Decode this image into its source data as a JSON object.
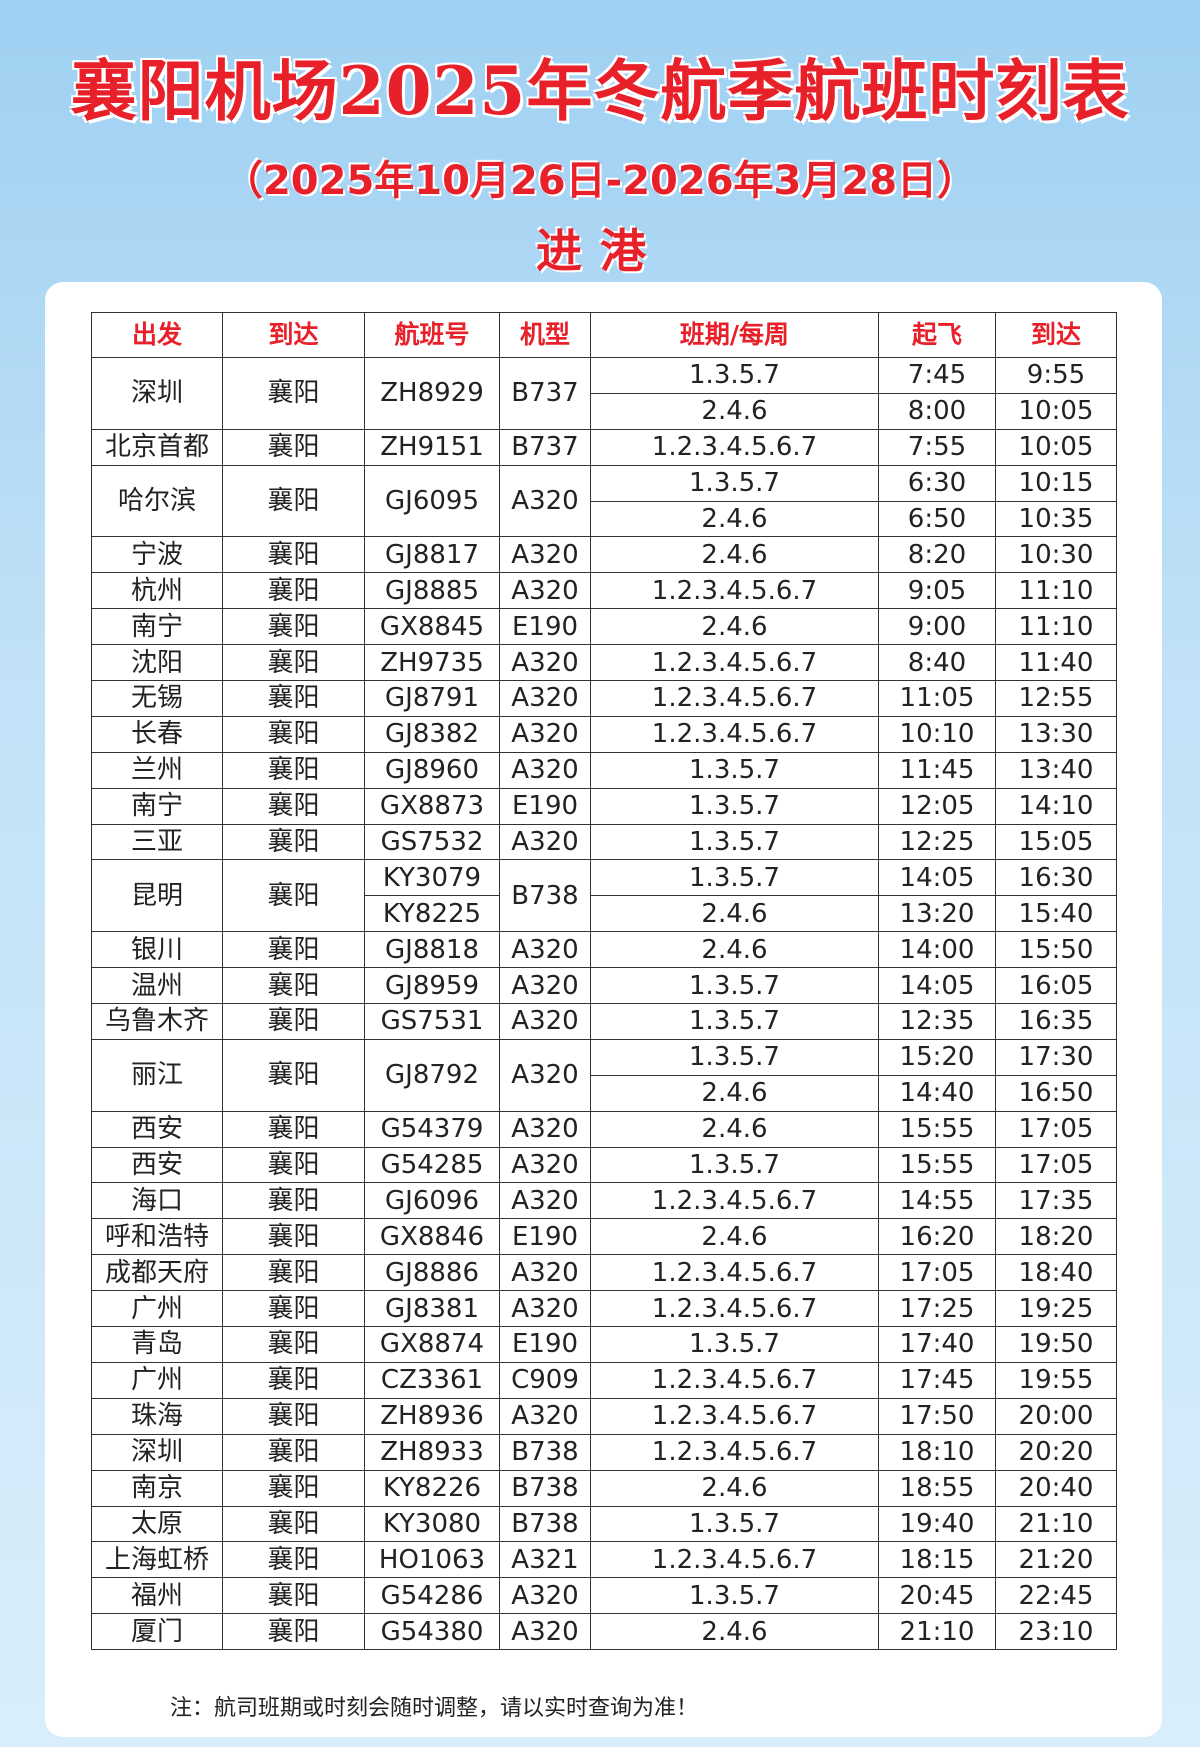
{
  "title": "襄阳机场2025年冬航季航班时刻表",
  "subtitle": "（2025年10月26日-2026年3月28日）",
  "section": "进港",
  "colors": {
    "accent": "#e8202a",
    "background": "#b5dcf5"
  },
  "table": {
    "headers": [
      "出发",
      "到达",
      "航班号",
      "机型",
      "班期/每周",
      "起飞",
      "到达"
    ],
    "rows": [
      {
        "from": "深圳",
        "to": "襄阳",
        "flight": "ZH8929",
        "aircraft": "B737",
        "schedules": [
          {
            "days": "1.3.5.7",
            "dep": "7:45",
            "arr": "9:55"
          },
          {
            "days": "2.4.6",
            "dep": "8:00",
            "arr": "10:05"
          }
        ]
      },
      {
        "from": "北京首都",
        "to": "襄阳",
        "flight": "ZH9151",
        "aircraft": "B737",
        "schedules": [
          {
            "days": "1.2.3.4.5.6.7",
            "dep": "7:55",
            "arr": "10:05"
          }
        ]
      },
      {
        "from": "哈尔滨",
        "to": "襄阳",
        "flight": "GJ6095",
        "aircraft": "A320",
        "schedules": [
          {
            "days": "1.3.5.7",
            "dep": "6:30",
            "arr": "10:15"
          },
          {
            "days": "2.4.6",
            "dep": "6:50",
            "arr": "10:35"
          }
        ]
      },
      {
        "from": "宁波",
        "to": "襄阳",
        "flight": "GJ8817",
        "aircraft": "A320",
        "schedules": [
          {
            "days": "2.4.6",
            "dep": "8:20",
            "arr": "10:30"
          }
        ]
      },
      {
        "from": "杭州",
        "to": "襄阳",
        "flight": "GJ8885",
        "aircraft": "A320",
        "schedules": [
          {
            "days": "1.2.3.4.5.6.7",
            "dep": "9:05",
            "arr": "11:10"
          }
        ]
      },
      {
        "from": "南宁",
        "to": "襄阳",
        "flight": "GX8845",
        "aircraft": "E190",
        "schedules": [
          {
            "days": "2.4.6",
            "dep": "9:00",
            "arr": "11:10"
          }
        ]
      },
      {
        "from": "沈阳",
        "to": "襄阳",
        "flight": "ZH9735",
        "aircraft": "A320",
        "schedules": [
          {
            "days": "1.2.3.4.5.6.7",
            "dep": "8:40",
            "arr": "11:40"
          }
        ]
      },
      {
        "from": "无锡",
        "to": "襄阳",
        "flight": "GJ8791",
        "aircraft": "A320",
        "schedules": [
          {
            "days": "1.2.3.4.5.6.7",
            "dep": "11:05",
            "arr": "12:55"
          }
        ]
      },
      {
        "from": "长春",
        "to": "襄阳",
        "flight": "GJ8382",
        "aircraft": "A320",
        "schedules": [
          {
            "days": "1.2.3.4.5.6.7",
            "dep": "10:10",
            "arr": "13:30"
          }
        ]
      },
      {
        "from": "兰州",
        "to": "襄阳",
        "flight": "GJ8960",
        "aircraft": "A320",
        "schedules": [
          {
            "days": "1.3.5.7",
            "dep": "11:45",
            "arr": "13:40"
          }
        ]
      },
      {
        "from": "南宁",
        "to": "襄阳",
        "flight": "GX8873",
        "aircraft": "E190",
        "schedules": [
          {
            "days": "1.3.5.7",
            "dep": "12:05",
            "arr": "14:10"
          }
        ]
      },
      {
        "from": "三亚",
        "to": "襄阳",
        "flight": "GS7532",
        "aircraft": "A320",
        "schedules": [
          {
            "days": "1.3.5.7",
            "dep": "12:25",
            "arr": "15:05"
          }
        ]
      },
      {
        "from": "昆明",
        "to": "襄阳",
        "flight": null,
        "aircraft": "B738",
        "schedules": [
          {
            "flight": "KY3079",
            "days": "1.3.5.7",
            "dep": "14:05",
            "arr": "16:30"
          },
          {
            "flight": "KY8225",
            "days": "2.4.6",
            "dep": "13:20",
            "arr": "15:40"
          }
        ]
      },
      {
        "from": "银川",
        "to": "襄阳",
        "flight": "GJ8818",
        "aircraft": "A320",
        "schedules": [
          {
            "days": "2.4.6",
            "dep": "14:00",
            "arr": "15:50"
          }
        ]
      },
      {
        "from": "温州",
        "to": "襄阳",
        "flight": "GJ8959",
        "aircraft": "A320",
        "schedules": [
          {
            "days": "1.3.5.7",
            "dep": "14:05",
            "arr": "16:05"
          }
        ]
      },
      {
        "from": "乌鲁木齐",
        "to": "襄阳",
        "flight": "GS7531",
        "aircraft": "A320",
        "schedules": [
          {
            "days": "1.3.5.7",
            "dep": "12:35",
            "arr": "16:35"
          }
        ]
      },
      {
        "from": "丽江",
        "to": "襄阳",
        "flight": "GJ8792",
        "aircraft": "A320",
        "schedules": [
          {
            "days": "1.3.5.7",
            "dep": "15:20",
            "arr": "17:30"
          },
          {
            "days": "2.4.6",
            "dep": "14:40",
            "arr": "16:50"
          }
        ]
      },
      {
        "from": "西安",
        "to": "襄阳",
        "flight": "G54379",
        "aircraft": "A320",
        "schedules": [
          {
            "days": "2.4.6",
            "dep": "15:55",
            "arr": "17:05"
          }
        ]
      },
      {
        "from": "西安",
        "to": "襄阳",
        "flight": "G54285",
        "aircraft": "A320",
        "schedules": [
          {
            "days": "1.3.5.7",
            "dep": "15:55",
            "arr": "17:05"
          }
        ]
      },
      {
        "from": "海口",
        "to": "襄阳",
        "flight": "GJ6096",
        "aircraft": "A320",
        "schedules": [
          {
            "days": "1.2.3.4.5.6.7",
            "dep": "14:55",
            "arr": "17:35"
          }
        ]
      },
      {
        "from": "呼和浩特",
        "to": "襄阳",
        "flight": "GX8846",
        "aircraft": "E190",
        "schedules": [
          {
            "days": "2.4.6",
            "dep": "16:20",
            "arr": "18:20"
          }
        ]
      },
      {
        "from": "成都天府",
        "to": "襄阳",
        "flight": "GJ8886",
        "aircraft": "A320",
        "schedules": [
          {
            "days": "1.2.3.4.5.6.7",
            "dep": "17:05",
            "arr": "18:40"
          }
        ]
      },
      {
        "from": "广州",
        "to": "襄阳",
        "flight": "GJ8381",
        "aircraft": "A320",
        "schedules": [
          {
            "days": "1.2.3.4.5.6.7",
            "dep": "17:25",
            "arr": "19:25"
          }
        ]
      },
      {
        "from": "青岛",
        "to": "襄阳",
        "flight": "GX8874",
        "aircraft": "E190",
        "schedules": [
          {
            "days": "1.3.5.7",
            "dep": "17:40",
            "arr": "19:50"
          }
        ]
      },
      {
        "from": "广州",
        "to": "襄阳",
        "flight": "CZ3361",
        "aircraft": "C909",
        "schedules": [
          {
            "days": "1.2.3.4.5.6.7",
            "dep": "17:45",
            "arr": "19:55"
          }
        ]
      },
      {
        "from": "珠海",
        "to": "襄阳",
        "flight": "ZH8936",
        "aircraft": "A320",
        "schedules": [
          {
            "days": "1.2.3.4.5.6.7",
            "dep": "17:50",
            "arr": "20:00"
          }
        ]
      },
      {
        "from": "深圳",
        "to": "襄阳",
        "flight": "ZH8933",
        "aircraft": "B738",
        "schedules": [
          {
            "days": "1.2.3.4.5.6.7",
            "dep": "18:10",
            "arr": "20:20"
          }
        ]
      },
      {
        "from": "南京",
        "to": "襄阳",
        "flight": "KY8226",
        "aircraft": "B738",
        "schedules": [
          {
            "days": "2.4.6",
            "dep": "18:55",
            "arr": "20:40"
          }
        ]
      },
      {
        "from": "太原",
        "to": "襄阳",
        "flight": "KY3080",
        "aircraft": "B738",
        "schedules": [
          {
            "days": "1.3.5.7",
            "dep": "19:40",
            "arr": "21:10"
          }
        ]
      },
      {
        "from": "上海虹桥",
        "to": "襄阳",
        "flight": "HO1063",
        "aircraft": "A321",
        "schedules": [
          {
            "days": "1.2.3.4.5.6.7",
            "dep": "18:15",
            "arr": "21:20"
          }
        ]
      },
      {
        "from": "福州",
        "to": "襄阳",
        "flight": "G54286",
        "aircraft": "A320",
        "schedules": [
          {
            "days": "1.3.5.7",
            "dep": "20:45",
            "arr": "22:45"
          }
        ]
      },
      {
        "from": "厦门",
        "to": "襄阳",
        "flight": "G54380",
        "aircraft": "A320",
        "schedules": [
          {
            "days": "2.4.6",
            "dep": "21:10",
            "arr": "23:10"
          }
        ]
      }
    ]
  },
  "note": "注：航司班期或时刻会随时调整，请以实时查询为准！"
}
